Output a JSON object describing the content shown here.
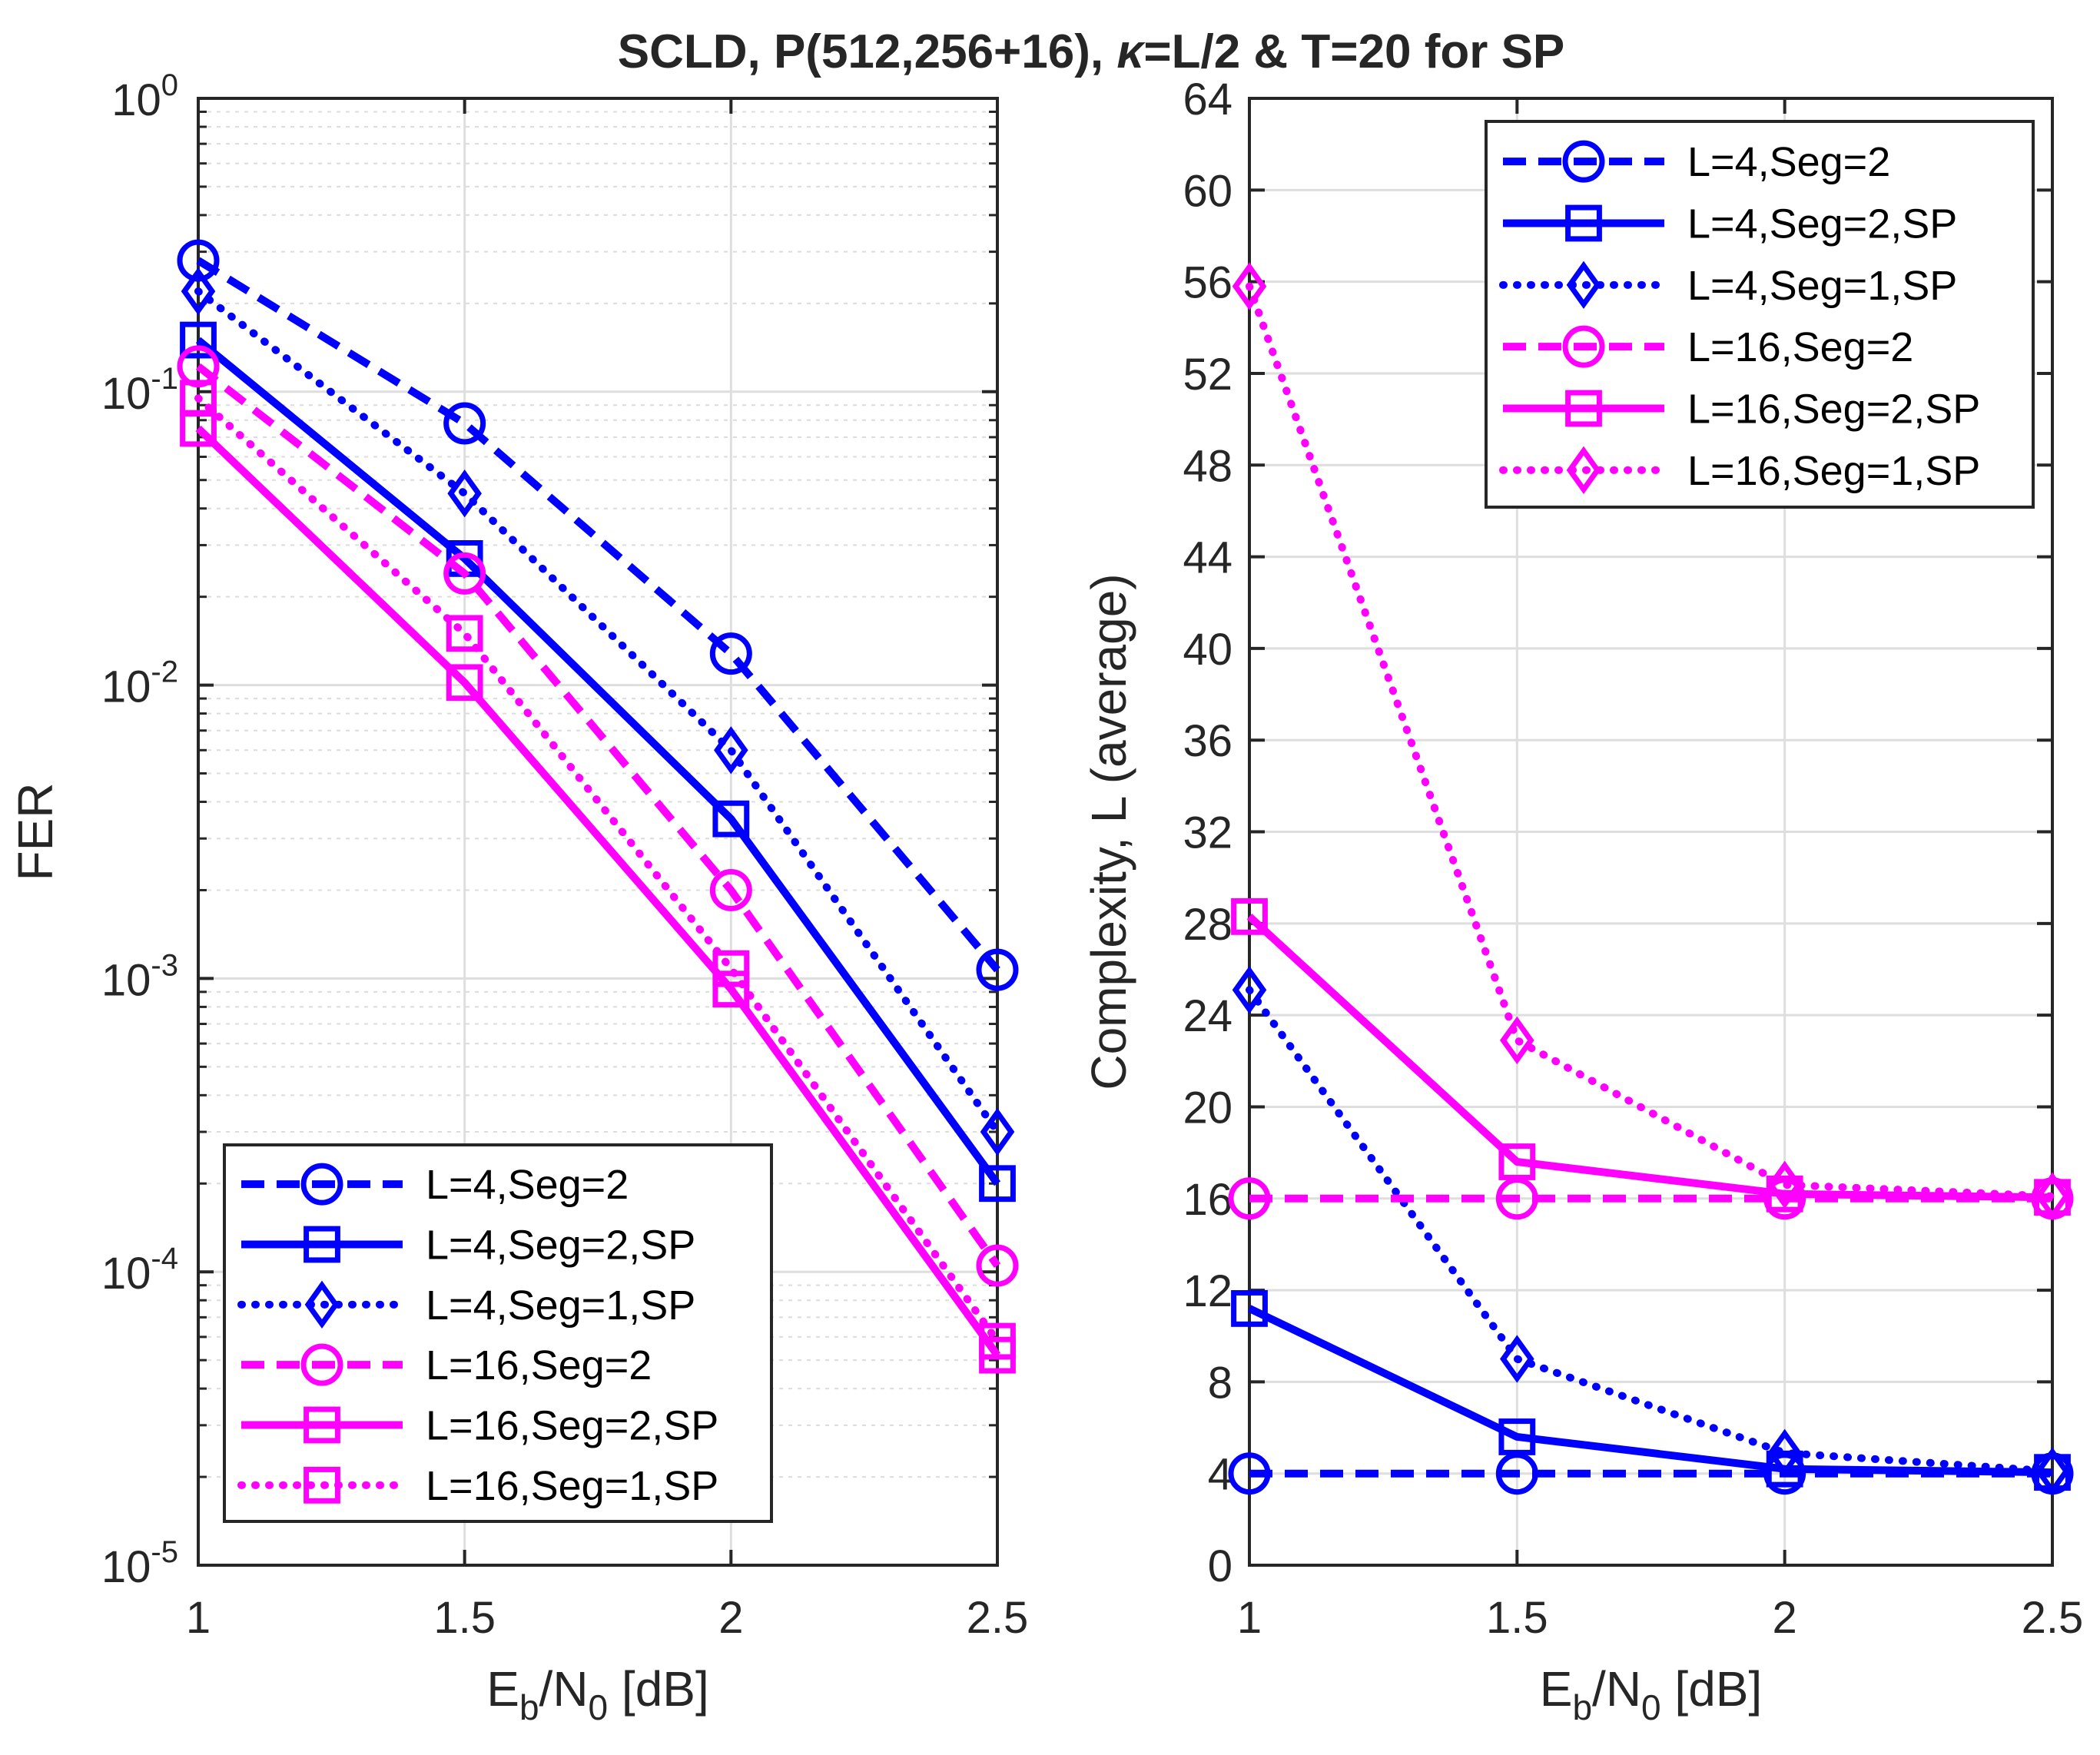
{
  "chart_data": [
    {
      "type": "line",
      "title": "SCLD, P(512,256+16), κ=L/2 & T=20 for SP",
      "xlabel": "E_b/N_0 [dB]",
      "xlabel_parts": {
        "main1": "E",
        "sub1": "b",
        "main2": "/N",
        "sub2": "0",
        "main3": " [dB]"
      },
      "ylabel": "FER",
      "yscale": "log",
      "xlim": [
        1,
        2.5
      ],
      "ylim": [
        1e-05,
        1
      ],
      "xticks": [
        1,
        1.5,
        2,
        2.5
      ],
      "xtick_labels": [
        "1",
        "1.5",
        "2",
        "2.5"
      ],
      "yticks": [
        1,
        0.1,
        0.01,
        0.001,
        0.0001,
        1e-05
      ],
      "ytick_labels": [
        {
          "base": "10",
          "exp": "0"
        },
        {
          "base": "10",
          "exp": "-1"
        },
        {
          "base": "10",
          "exp": "-2"
        },
        {
          "base": "10",
          "exp": "-3"
        },
        {
          "base": "10",
          "exp": "-4"
        },
        {
          "base": "10",
          "exp": "-5"
        }
      ],
      "grid": true,
      "legend_position": "bottom-left",
      "x": [
        1,
        1.5,
        2,
        2.5
      ],
      "series": [
        {
          "name": "L=4,Seg=2",
          "color": "#0000ff",
          "dash": "dashed",
          "marker": "circle",
          "values": [
            0.28,
            0.078,
            0.0128,
            0.00107
          ]
        },
        {
          "name": "L=4,Seg=2,SP",
          "color": "#0000ff",
          "dash": "solid",
          "marker": "square",
          "values": [
            0.15,
            0.027,
            0.0035,
            0.0002
          ]
        },
        {
          "name": "L=4,Seg=1,SP",
          "color": "#0000ff",
          "dash": "dotted",
          "marker": "diamond",
          "values": [
            0.22,
            0.045,
            0.006,
            0.0003
          ]
        },
        {
          "name": "L=16,Seg=2",
          "color": "#ff00ff",
          "dash": "dashed",
          "marker": "circle",
          "values": [
            0.122,
            0.024,
            0.002,
            0.000105
          ]
        },
        {
          "name": "L=16,Seg=2,SP",
          "color": "#ff00ff",
          "dash": "solid",
          "marker": "square",
          "values": [
            0.075,
            0.0102,
            0.00092,
            5.2e-05
          ]
        },
        {
          "name": "L=16,Seg=1,SP",
          "color": "#ff00ff",
          "dash": "dotted",
          "marker": "square",
          "values": [
            0.095,
            0.015,
            0.00108,
            5.8e-05
          ]
        }
      ]
    },
    {
      "type": "line",
      "title": "",
      "xlabel": "E_b/N_0 [dB]",
      "xlabel_parts": {
        "main1": "E",
        "sub1": "b",
        "main2": "/N",
        "sub2": "0",
        "main3": " [dB]"
      },
      "ylabel": "Complexity, L (average)",
      "yscale": "linear",
      "xlim": [
        1,
        2.5
      ],
      "ylim": [
        0,
        64
      ],
      "xticks": [
        1,
        1.5,
        2,
        2.5
      ],
      "xtick_labels": [
        "1",
        "1.5",
        "2",
        "2.5"
      ],
      "yticks": [
        0,
        4,
        8,
        12,
        16,
        20,
        24,
        28,
        32,
        36,
        40,
        44,
        48,
        52,
        56,
        60,
        64
      ],
      "ytick_labels": [
        "0",
        "4",
        "8",
        "12",
        "16",
        "20",
        "24",
        "28",
        "32",
        "36",
        "40",
        "44",
        "48",
        "52",
        "56",
        "60",
        "64"
      ],
      "grid": true,
      "legend_position": "top-right",
      "x": [
        1,
        1.5,
        2,
        2.5
      ],
      "series": [
        {
          "name": "L=4,Seg=2",
          "color": "#0000ff",
          "dash": "dashed",
          "marker": "circle",
          "values": [
            4,
            4,
            4,
            4
          ]
        },
        {
          "name": "L=4,Seg=2,SP",
          "color": "#0000ff",
          "dash": "solid",
          "marker": "square",
          "values": [
            11.2,
            5.6,
            4.2,
            4.05
          ]
        },
        {
          "name": "L=4,Seg=1,SP",
          "color": "#0000ff",
          "dash": "dotted",
          "marker": "diamond",
          "values": [
            25.1,
            9.0,
            4.9,
            4.1
          ]
        },
        {
          "name": "L=16,Seg=2",
          "color": "#ff00ff",
          "dash": "dashed",
          "marker": "circle",
          "values": [
            16,
            16,
            16,
            16
          ]
        },
        {
          "name": "L=16,Seg=2,SP",
          "color": "#ff00ff",
          "dash": "solid",
          "marker": "square",
          "values": [
            28.3,
            17.6,
            16.2,
            16.05
          ]
        },
        {
          "name": "L=16,Seg=1,SP",
          "color": "#ff00ff",
          "dash": "dotted",
          "marker": "diamond",
          "values": [
            55.8,
            22.9,
            16.6,
            16.1
          ]
        }
      ]
    }
  ]
}
